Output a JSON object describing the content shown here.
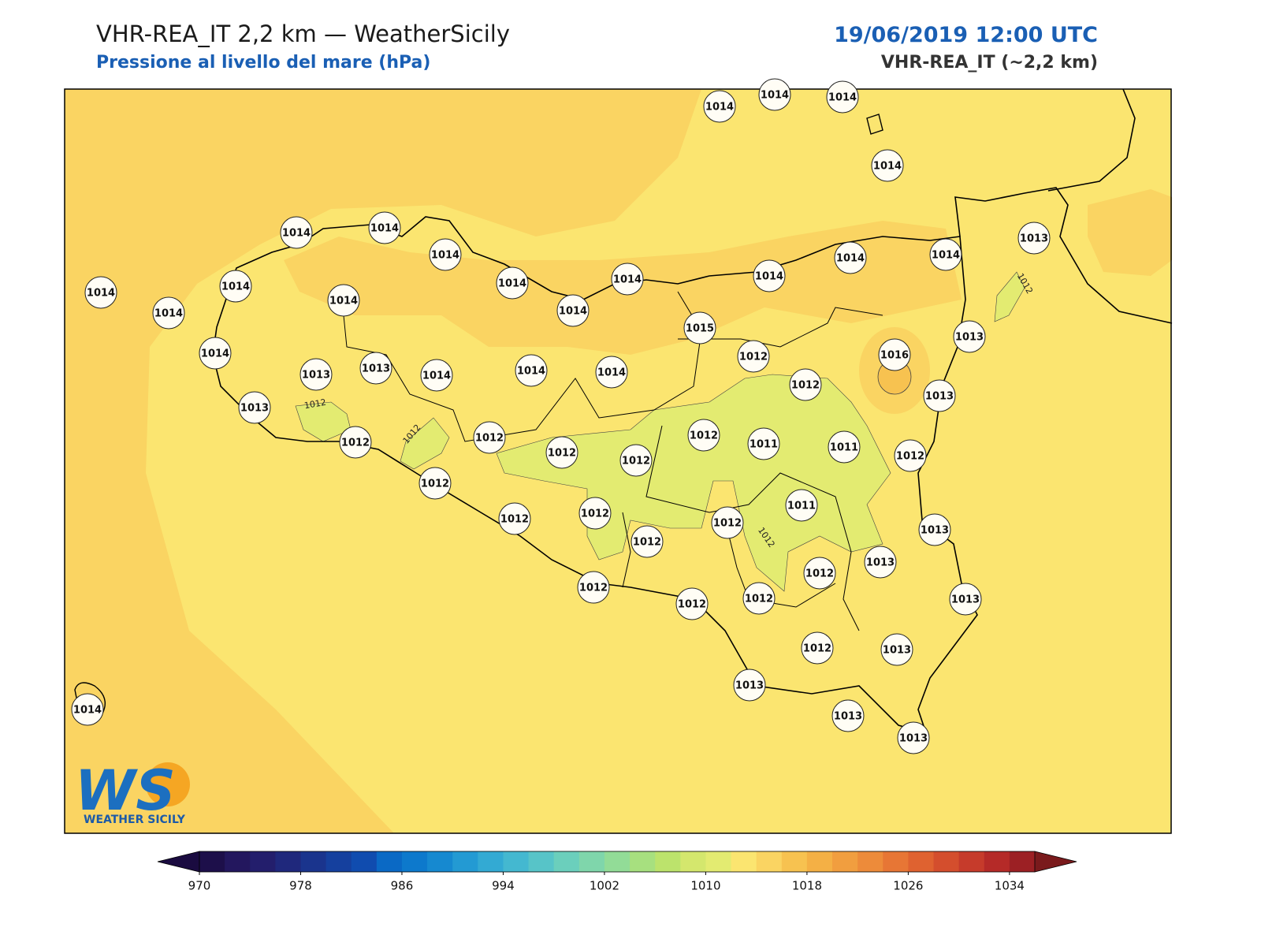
{
  "header": {
    "title": "VHR-REA_IT 2,2 km — WeatherSicily",
    "subtitle": "Pressione al livello del mare (hPa)",
    "date": "19/06/2019 12:00 UTC",
    "model": "VHR-REA_IT (~2,2 km)"
  },
  "map": {
    "stations": [
      1014,
      1014,
      1014,
      1014,
      1013,
      1014,
      1014,
      1014,
      1014,
      1014,
      1014,
      1014,
      1014,
      1014,
      1014,
      1014,
      1014,
      1014,
      1015,
      1013,
      1014,
      1012,
      1016,
      1013,
      1013,
      1014,
      1014,
      1014,
      1012,
      1013,
      1013,
      1012,
      1012,
      1012,
      1012,
      1012,
      1011,
      1011,
      1012,
      1012,
      1011,
      1012,
      1012,
      1012,
      1012,
      1013,
      1013,
      1012,
      1012,
      1012,
      1012,
      1013,
      1012,
      1013,
      1013,
      1013,
      1013,
      1014
    ],
    "contour_labels": [
      1012,
      1012,
      1012,
      1012
    ]
  },
  "colorbar": {
    "lim": [
      970,
      1036
    ],
    "ticks": [
      970,
      978,
      986,
      994,
      1002,
      1010,
      1018,
      1026,
      1034
    ],
    "under": "#1a0b40",
    "over": "#7a1a1c",
    "colors": [
      "#1d0f4a",
      "#23175e",
      "#231e6c",
      "#1f287c",
      "#1a348d",
      "#15409e",
      "#104caf",
      "#0a69c5",
      "#0d79cc",
      "#1689d0",
      "#239ad3",
      "#33aad3",
      "#44b8d0",
      "#57c4c8",
      "#6bcfbc",
      "#7fd6ab",
      "#92dc97",
      "#a7e07f",
      "#bce36c",
      "#d4e76d",
      "#e3eb71",
      "#fbe570",
      "#fad462",
      "#f7c250",
      "#f4b045",
      "#f19e3f",
      "#ed8b3a",
      "#e77635",
      "#df6230",
      "#d44e2d",
      "#c63b2b",
      "#b52a28",
      "#9c2024"
    ]
  },
  "logo": {
    "text": "WS",
    "caption": "WEATHER SICILY"
  }
}
